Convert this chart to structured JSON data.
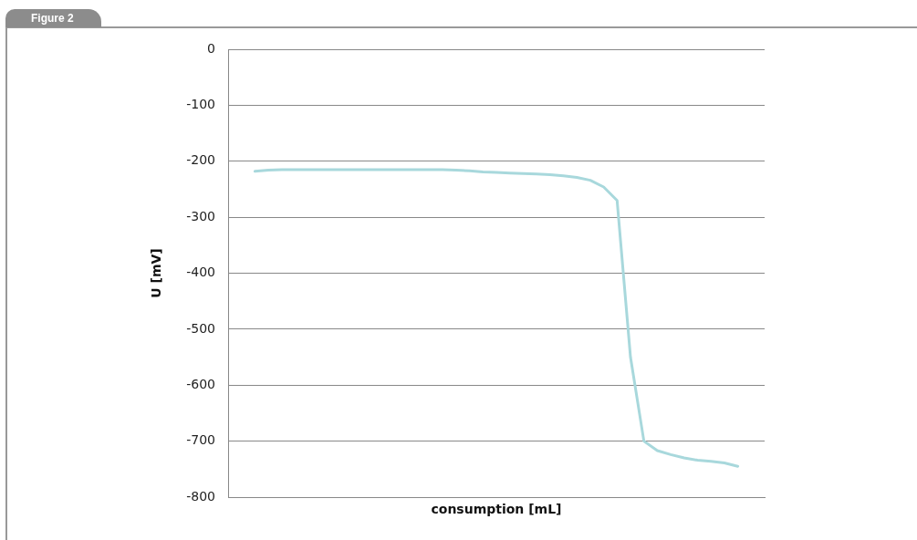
{
  "chart_data": {
    "type": "line",
    "title": "Figure 2",
    "xlabel": "consumption [mL]",
    "ylabel": "U [mV]",
    "categories": [
      null,
      null,
      null,
      null,
      null,
      null,
      null,
      null,
      null,
      null,
      null,
      null,
      null,
      null,
      null,
      null,
      null,
      null,
      null,
      null,
      null,
      null,
      null,
      null,
      null,
      null,
      null,
      null,
      null,
      null,
      null,
      null,
      null,
      null,
      null,
      null,
      null,
      null,
      null,
      null,
      null
    ],
    "series": [
      {
        "color": "#a8d8dc",
        "values": [
          null,
          null,
          -218,
          -216,
          -215,
          -215,
          -215,
          -215,
          -215,
          -215,
          -215,
          -215,
          -215,
          -215,
          -215,
          -215,
          -215,
          -216,
          -217,
          -219,
          -220,
          -221,
          -222,
          -223,
          -224,
          -226,
          -229,
          -234,
          -246,
          -270,
          -550,
          -700,
          -717,
          -724,
          -730,
          -734,
          -736,
          -739,
          -745,
          null,
          null
        ]
      }
    ],
    "ylim": [
      -800,
      0
    ],
    "yticks": [
      -800,
      -700,
      -600,
      -500,
      -400,
      -300,
      -200,
      -100,
      0
    ],
    "grid": "y",
    "tick_labels": "y",
    "marker": "none",
    "line_style": "solid"
  }
}
